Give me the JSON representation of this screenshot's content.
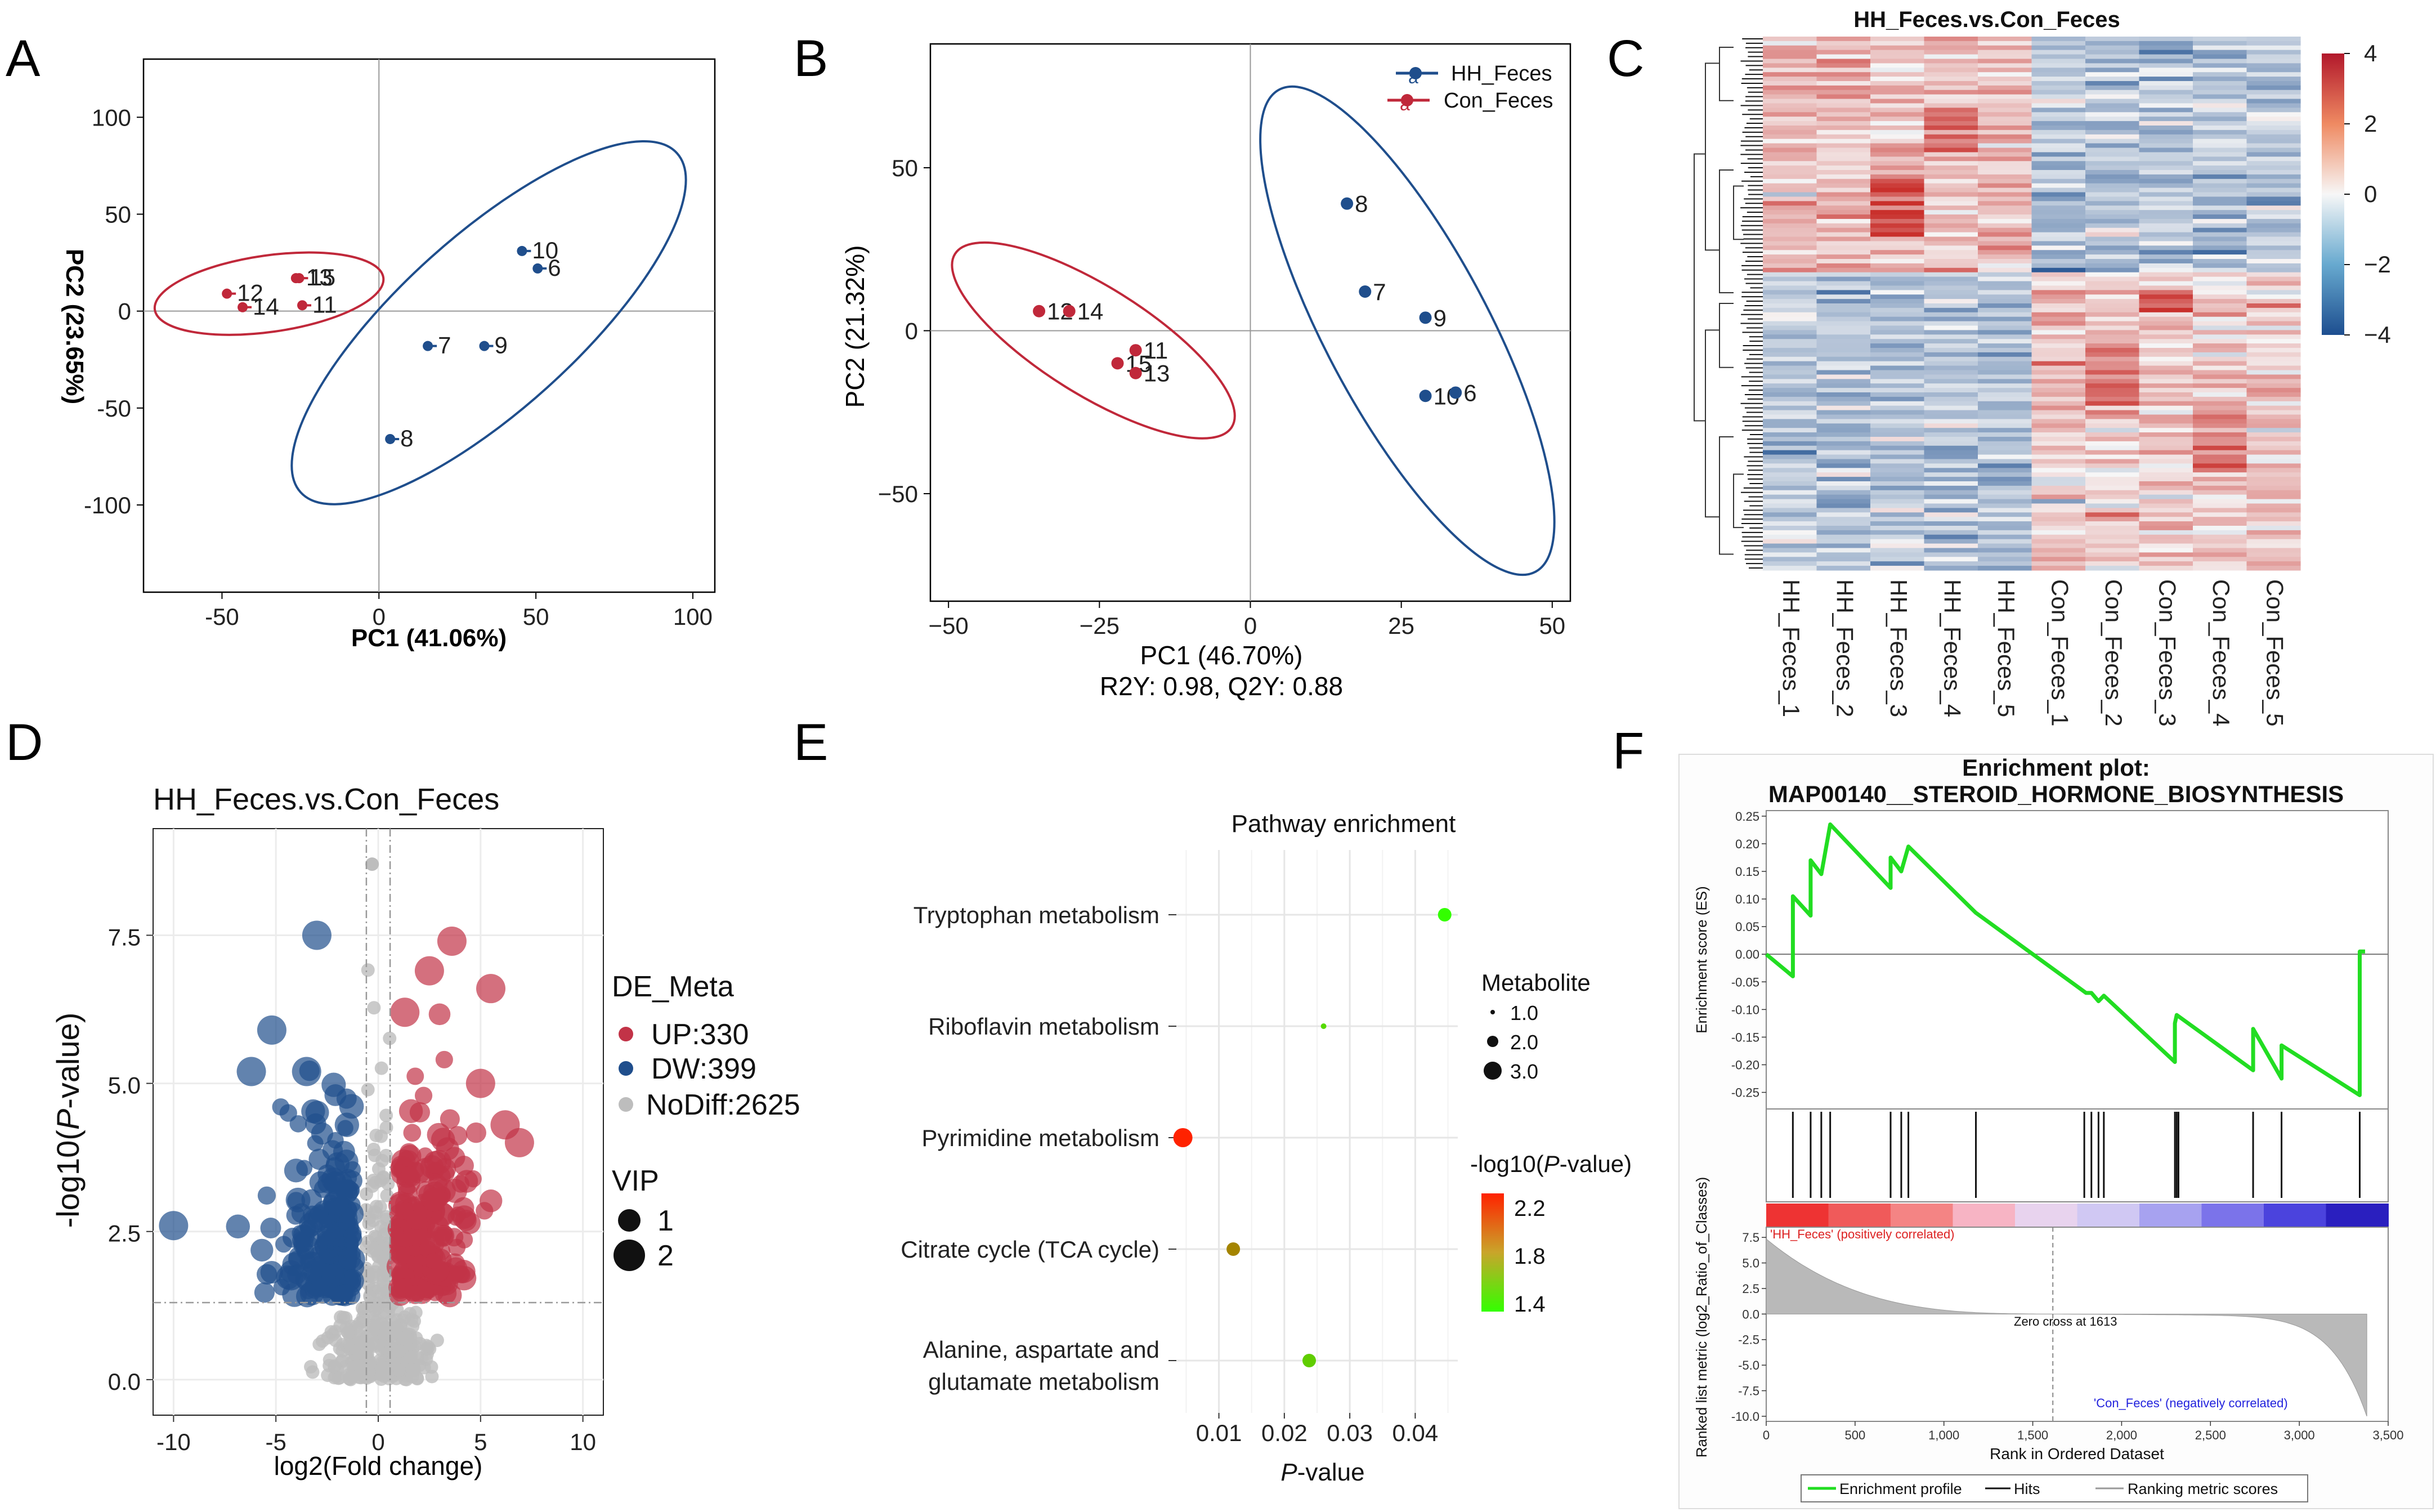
{
  "panels": {
    "A": "A",
    "B": "B",
    "C": "C",
    "D": "D",
    "E": "E",
    "F": "F"
  },
  "colors": {
    "hh": "#1f4e8c",
    "con": "#c0283a",
    "up": "#c23347",
    "down": "#1f4e8c",
    "nodiff": "#bdbdbd",
    "heat_high": "#c9302c",
    "heat_low": "#1d4e8f",
    "es_line": "#22dd22"
  },
  "chart_data": [
    {
      "id": "A",
      "type": "scatter",
      "title": "",
      "xlabel": "PC1 (41.06%)",
      "ylabel": "PC2 (23.65%)",
      "xlim": [
        -75,
        107
      ],
      "ylim": [
        -145,
        130
      ],
      "xticks": [
        -50,
        0,
        50,
        100
      ],
      "yticks": [
        -100,
        -50,
        0,
        50,
        100
      ],
      "points": [
        {
          "label": "12",
          "x": -47,
          "y": 9,
          "group": "con"
        },
        {
          "label": "14",
          "x": -42,
          "y": 2,
          "group": "con"
        },
        {
          "label": "13",
          "x": -25,
          "y": 17,
          "group": "con"
        },
        {
          "label": "15",
          "x": -24,
          "y": 17,
          "group": "con"
        },
        {
          "label": "11",
          "x": -23,
          "y": 3,
          "group": "con"
        },
        {
          "label": "10",
          "x": 47,
          "y": 31,
          "group": "hh"
        },
        {
          "label": "6",
          "x": 52,
          "y": 22,
          "group": "hh"
        },
        {
          "label": "7",
          "x": 17,
          "y": -18,
          "group": "hh"
        },
        {
          "label": "9",
          "x": 35,
          "y": -18,
          "group": "hh"
        },
        {
          "label": "8",
          "x": 5,
          "y": -66,
          "group": "hh"
        }
      ]
    },
    {
      "id": "B",
      "type": "scatter",
      "title": "",
      "xlabel": "PC1 (46.70%)",
      "subtitle": "R2Y: 0.98, Q2Y: 0.88",
      "ylabel": "PC2 (21.32%)",
      "xlim": [
        -53,
        53
      ],
      "ylim": [
        -83,
        88
      ],
      "xticks": [
        -50,
        -25,
        0,
        25,
        50
      ],
      "yticks": [
        -50,
        0,
        50
      ],
      "legend": [
        {
          "name": "HH_Feces",
          "marker": "a",
          "group": "hh"
        },
        {
          "name": "Con_Feces",
          "marker": "a",
          "group": "con"
        }
      ],
      "points": [
        {
          "label": "12",
          "x": -35,
          "y": 6,
          "group": "con"
        },
        {
          "label": "14",
          "x": -30,
          "y": 6,
          "group": "con"
        },
        {
          "label": "11",
          "x": -19,
          "y": -6,
          "group": "con"
        },
        {
          "label": "15",
          "x": -22,
          "y": -10,
          "group": "con"
        },
        {
          "label": "13",
          "x": -19,
          "y": -13,
          "group": "con"
        },
        {
          "label": "8",
          "x": 16,
          "y": 39,
          "group": "hh"
        },
        {
          "label": "7",
          "x": 19,
          "y": 12,
          "group": "hh"
        },
        {
          "label": "9",
          "x": 29,
          "y": 4,
          "group": "hh"
        },
        {
          "label": "10",
          "x": 29,
          "y": -20,
          "group": "hh"
        },
        {
          "label": "6",
          "x": 34,
          "y": -19,
          "group": "hh"
        }
      ]
    },
    {
      "id": "C",
      "type": "heatmap",
      "title": "HH_Feces.vs.Con_Feces",
      "columns": [
        "HH_Feces_1",
        "HH_Feces_2",
        "HH_Feces_3",
        "HH_Feces_4",
        "HH_Feces_5",
        "Con_Feces_1",
        "Con_Feces_2",
        "Con_Feces_3",
        "Con_Feces_4",
        "Con_Feces_5"
      ],
      "colorbar_ticks": [
        4,
        2,
        0,
        -2,
        -4
      ],
      "zlim": [
        -4,
        4
      ]
    },
    {
      "id": "D",
      "type": "scatter",
      "title": "HH_Feces.vs.Con_Feces",
      "xlabel": "log2(Fold change)",
      "ylabel_main": "-log10(",
      "ylabel_italic": "P",
      "ylabel_tail": "-value)",
      "xlim": [
        -11,
        11
      ],
      "ylim": [
        -0.6,
        9.3
      ],
      "xticks": [
        -10,
        -5,
        0,
        5,
        10
      ],
      "yticks": [
        "0.0",
        "2.5",
        "5.0",
        "7.5"
      ],
      "ytick_values": [
        0,
        2.5,
        5,
        7.5
      ],
      "thresholds": {
        "x": [
          -0.58,
          0.58
        ],
        "y": 1.3
      },
      "legend_title": "DE_Meta",
      "legend": [
        {
          "name": "UP:330",
          "group": "up"
        },
        {
          "name": "DW:399",
          "group": "down"
        },
        {
          "name": "NoDiff:2625",
          "group": "nodiff"
        }
      ],
      "size_title": "VIP",
      "size_legend": [
        "1",
        "2"
      ]
    },
    {
      "id": "E",
      "type": "scatter",
      "title": "Pathway enrichment",
      "xlabel_italic": "P",
      "xlabel_tail": "-value",
      "xlim": [
        0.0035,
        0.0465
      ],
      "xticks": [
        "0.01",
        "0.02",
        "0.03",
        "0.04"
      ],
      "xtick_values": [
        0.01,
        0.02,
        0.03,
        0.04
      ],
      "categories": [
        "Tryptophan metabolism",
        "Riboflavin metabolism",
        "Pyrimidine metabolism",
        "Citrate cycle (TCA cycle)",
        "Alanine, aspartate and glutamate metabolism"
      ],
      "category_lines": [
        [
          "Tryptophan metabolism"
        ],
        [
          "Riboflavin metabolism"
        ],
        [
          "Pyrimidine metabolism"
        ],
        [
          "Citrate cycle (TCA cycle)"
        ],
        [
          "Alanine, aspartate and",
          "glutamate metabolism"
        ]
      ],
      "points": [
        {
          "pathway": "Tryptophan metabolism",
          "p": 0.0445,
          "metabolite": 2,
          "neglog10p": 1.36
        },
        {
          "pathway": "Riboflavin metabolism",
          "p": 0.026,
          "metabolite": 1,
          "neglog10p": 1.55
        },
        {
          "pathway": "Pyrimidine metabolism",
          "p": 0.0045,
          "metabolite": 3,
          "neglog10p": 2.35
        },
        {
          "pathway": "Citrate cycle (TCA cycle)",
          "p": 0.0122,
          "metabolite": 2,
          "neglog10p": 1.9
        },
        {
          "pathway": "Alanine, aspartate and glutamate metabolism",
          "p": 0.0238,
          "metabolite": 2,
          "neglog10p": 1.6
        }
      ],
      "size_title": "Metabolite",
      "size_legend": [
        "1.0",
        "2.0",
        "3.0"
      ],
      "color_title_pre": "-log10(",
      "color_title_italic": "P",
      "color_title_post": "-value)",
      "color_ticks": [
        "2.2",
        "1.8",
        "1.4"
      ]
    },
    {
      "id": "F",
      "type": "line",
      "title": "Enrichment plot:",
      "subtitle": "MAP00140__STEROID_HORMONE_BIOSYNTHESIS",
      "ylabel_top": "Enrichment score (ES)",
      "ylabel_bottom": "Ranked list metric (log2_Ratio_of_Classes)",
      "xlabel": "Rank in Ordered Dataset",
      "xlim": [
        0,
        3500
      ],
      "xticks": [
        "0",
        "500",
        "1,000",
        "1,500",
        "2,000",
        "2,500",
        "3,000",
        "3,500"
      ],
      "xtick_values": [
        0,
        500,
        1000,
        1500,
        2000,
        2500,
        3000,
        3500
      ],
      "es_ylim": [
        -0.28,
        0.26
      ],
      "es_yticks": [
        "0.25",
        "0.20",
        "0.15",
        "0.10",
        "0.05",
        "0.00",
        "-0.05",
        "-0.10",
        "-0.15",
        "-0.20",
        "-0.25"
      ],
      "es_ytick_values": [
        0.25,
        0.2,
        0.15,
        0.1,
        0.05,
        0,
        -0.05,
        -0.1,
        -0.15,
        -0.2,
        -0.25
      ],
      "es_curve": [
        [
          0,
          0
        ],
        [
          150,
          -0.04
        ],
        [
          150,
          0.105
        ],
        [
          250,
          0.07
        ],
        [
          250,
          0.17
        ],
        [
          310,
          0.145
        ],
        [
          360,
          0.235
        ],
        [
          700,
          0.12
        ],
        [
          700,
          0.175
        ],
        [
          760,
          0.15
        ],
        [
          800,
          0.195
        ],
        [
          1180,
          0.075
        ],
        [
          1800,
          -0.07
        ],
        [
          1830,
          -0.07
        ],
        [
          1870,
          -0.085
        ],
        [
          1900,
          -0.075
        ],
        [
          2300,
          -0.195
        ],
        [
          2300,
          -0.125
        ],
        [
          2310,
          -0.11
        ],
        [
          2740,
          -0.21
        ],
        [
          2740,
          -0.135
        ],
        [
          2900,
          -0.225
        ],
        [
          2900,
          -0.165
        ],
        [
          3340,
          -0.255
        ],
        [
          3340,
          0.005
        ],
        [
          3370,
          0.005
        ]
      ],
      "hits": [
        150,
        250,
        310,
        360,
        700,
        760,
        800,
        1180,
        1790,
        1830,
        1870,
        1900,
        2300,
        2310,
        2320,
        2740,
        2900,
        3340
      ],
      "metric_ylim": [
        -10.5,
        8.5
      ],
      "metric_yticks": [
        "7.5",
        "5.0",
        "2.5",
        "0.0",
        "-2.5",
        "-5.0",
        "-7.5",
        "-10.0"
      ],
      "metric_ytick_values": [
        7.5,
        5,
        2.5,
        0,
        -2.5,
        -5,
        -7.5,
        -10
      ],
      "zero_cross": 1613,
      "zero_cross_label": "Zero cross at 1613",
      "pos_label": "'HH_Feces' (positively correlated)",
      "neg_label": "'Con_Feces' (negatively correlated)",
      "legend": [
        "Enrichment profile",
        "Hits",
        "Ranking metric scores"
      ]
    }
  ]
}
